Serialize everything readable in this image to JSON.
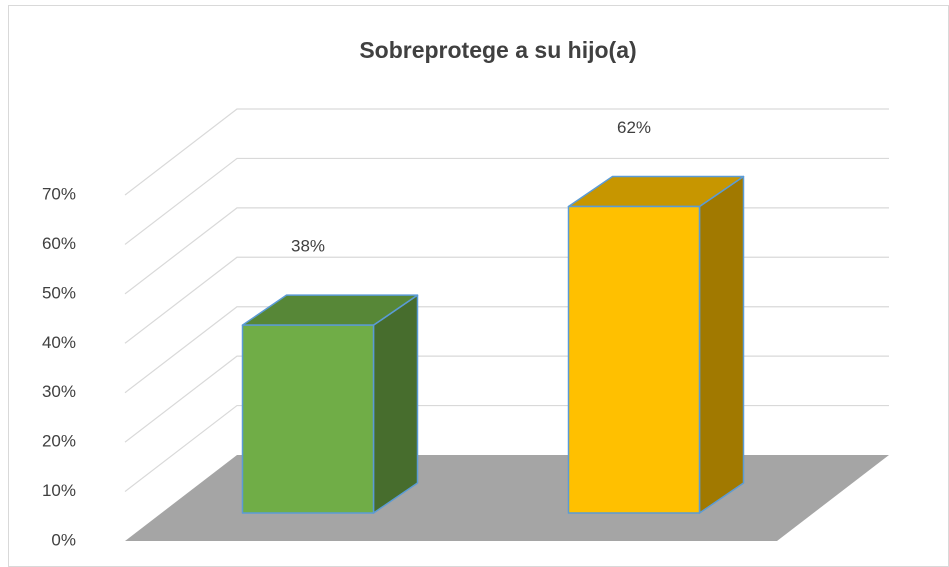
{
  "chart_data": {
    "type": "bar",
    "title": "Sobreprotege a su hijo(a)",
    "categories": [
      null,
      null
    ],
    "values": [
      38,
      62
    ],
    "value_labels": [
      "38%",
      "62%"
    ],
    "colors": [
      "#70ad47",
      "#ffc000"
    ],
    "ylim": [
      0,
      70
    ],
    "yticks": [
      {
        "value": 0,
        "label": "0%"
      },
      {
        "value": 10,
        "label": "10%"
      },
      {
        "value": 20,
        "label": "20%"
      },
      {
        "value": 30,
        "label": "30%"
      },
      {
        "value": 40,
        "label": "40%"
      },
      {
        "value": 50,
        "label": "50%"
      },
      {
        "value": 60,
        "label": "60%"
      },
      {
        "value": 70,
        "label": "70%"
      }
    ],
    "grid": true
  }
}
